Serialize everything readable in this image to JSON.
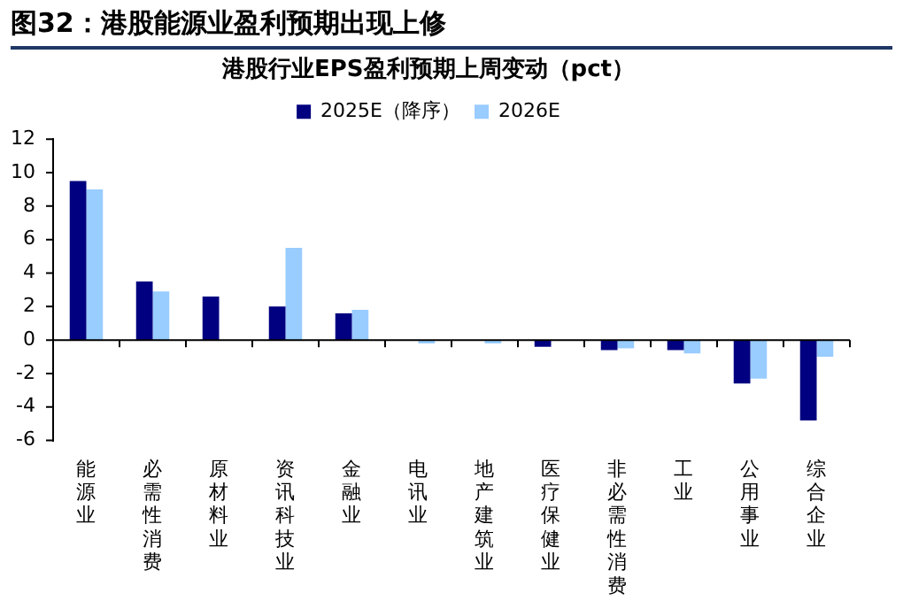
{
  "chart_data": {
    "type": "bar",
    "title": "图32：港股能源业盈利预期出现上修",
    "subtitle": "港股行业EPS盈利预期上周变动（pct）",
    "categories": [
      "能源业",
      "必需性消费",
      "原材料业",
      "资讯科技业",
      "金融业",
      "电讯业",
      "地产建筑业",
      "医疗保健业",
      "非必需性消费",
      "工业",
      "公用事业",
      "综合企业"
    ],
    "series": [
      {
        "name": "2025E（降序）",
        "color": "#000080",
        "values": [
          9.5,
          3.5,
          2.6,
          2.0,
          1.6,
          0,
          0,
          -0.4,
          -0.6,
          -0.6,
          -2.6,
          -4.8
        ]
      },
      {
        "name": "2026E",
        "color": "#99ccff",
        "values": [
          9.0,
          2.9,
          0,
          5.5,
          1.8,
          -0.2,
          -0.2,
          0,
          -0.5,
          -0.8,
          -2.3,
          -1.0
        ]
      }
    ],
    "ylim": [
      -6,
      12
    ],
    "yticks": [
      -6,
      -4,
      -2,
      0,
      2,
      4,
      6,
      8,
      10,
      12
    ],
    "legend": "top"
  }
}
